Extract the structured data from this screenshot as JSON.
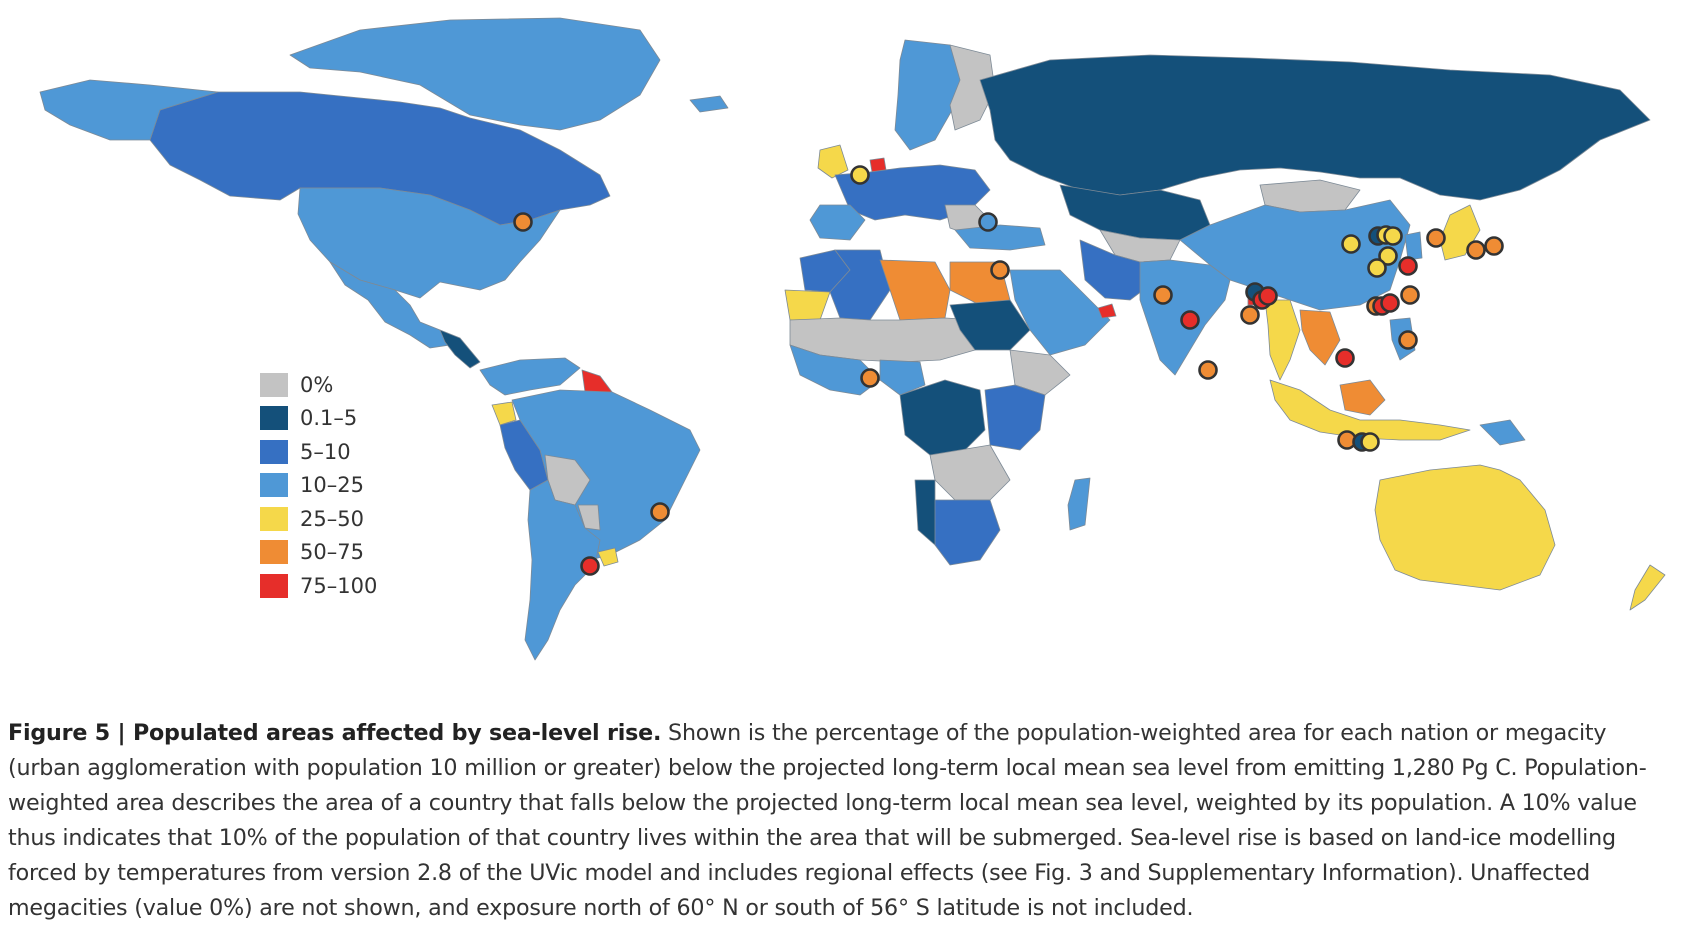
{
  "legend": {
    "items": [
      {
        "label": "0%",
        "color": "#c3c3c3"
      },
      {
        "label": "0.1–5",
        "color": "#14507a"
      },
      {
        "label": "5–10",
        "color": "#3670c2"
      },
      {
        "label": "10–25",
        "color": "#4f98d6"
      },
      {
        "label": "25–50",
        "color": "#f5d84a"
      },
      {
        "label": "50–75",
        "color": "#ef8c34"
      },
      {
        "label": "75–100",
        "color": "#e62e2a"
      }
    ]
  },
  "caption": {
    "figure_label": "Figure 5 | Populated areas affected by sea-level rise.",
    "text": " Shown is the percentage of the population-weighted area for each nation or megacity (urban agglomeration with population 10 million or greater) below the projected long-term local mean sea level from emitting 1,280 Pg C. Population-weighted area describes the area of a country that falls below the projected long-term local mean sea level, weighted by its population. A 10% value thus indicates that 10% of the population of that country lives within the area that will be submerged. Sea-level rise is based on land-ice modelling forced by temperatures from version 2.8 of the UVic model and includes regional effects (see Fig. 3 and Supplementary Information). Unaffected megacities (value 0%) are not shown, and exposure north of 60° N or south of 56° S latitude is not included."
  },
  "colors": {
    "c0": "#c3c3c3",
    "c1": "#14507a",
    "c2": "#3670c2",
    "c3": "#4f98d6",
    "c4": "#f5d84a",
    "c5": "#ef8c34",
    "c6": "#e62e2a"
  }
}
